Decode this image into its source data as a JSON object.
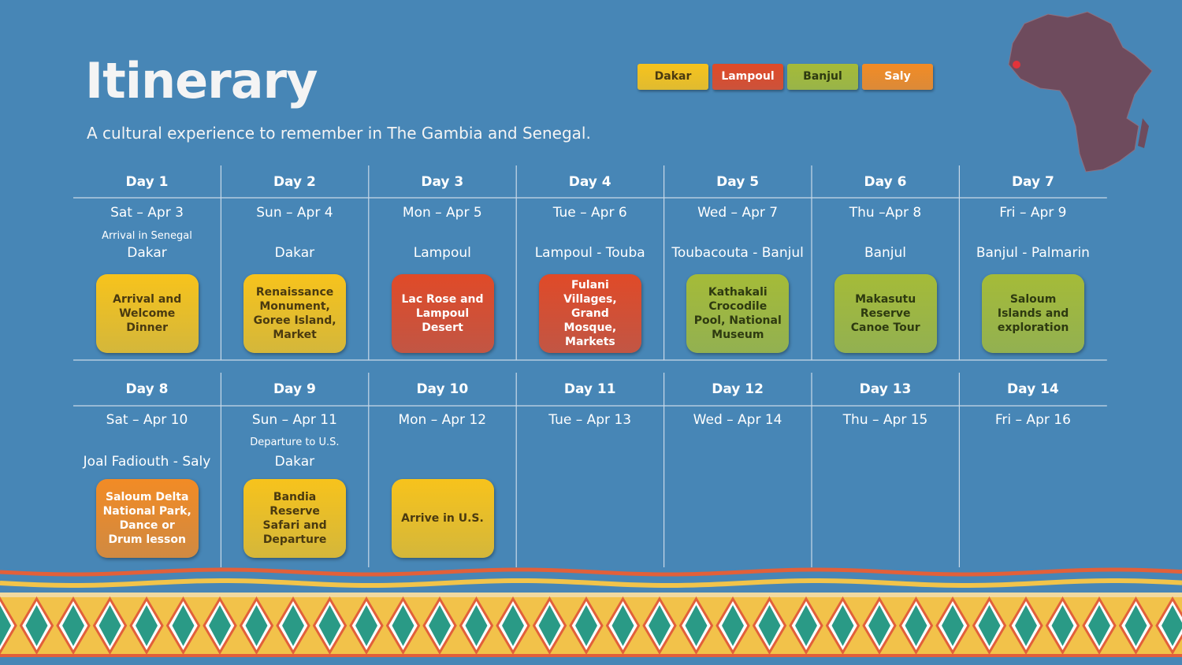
{
  "header": {
    "title": "Itinerary",
    "subtitle": "A cultural experience to remember in The Gambia and Senegal."
  },
  "legend": [
    {
      "label": "Dakar",
      "color": "#f7c31c",
      "text_color": "#4a3a10"
    },
    {
      "label": "Lampoul",
      "color": "#e04a28",
      "text_color": "#ffffff"
    },
    {
      "label": "Banjul",
      "color": "#a5bb38",
      "text_color": "#2e3a10"
    },
    {
      "label": "Saly",
      "color": "#f28b25",
      "text_color": "#ffffff"
    }
  ],
  "weeks": [
    {
      "days": [
        {
          "day": "Day 1",
          "date": "Sat – Apr 3",
          "note": "Arrival in Senegal",
          "location": "Dakar",
          "activity": {
            "text": "Arrival and Welcome Dinner",
            "color": "#f7c31c",
            "text_color": "#4a3a10"
          }
        },
        {
          "day": "Day 2",
          "date": "Sun – Apr 4",
          "location": "Dakar",
          "activity": {
            "text": "Renaissance Monument, Goree Island, Market",
            "color": "#f7c31c",
            "text_color": "#4a3a10"
          }
        },
        {
          "day": "Day 3",
          "date": "Mon – Apr 5",
          "location": "Lampoul",
          "activity": {
            "text": "Lac Rose and Lampoul Desert",
            "color": "#e04a28",
            "text_color": "#ffffff"
          }
        },
        {
          "day": "Day 4",
          "date": "Tue – Apr 6",
          "location": "Lampoul - Touba",
          "activity": {
            "text": "Fulani Villages, Grand Mosque, Markets",
            "color": "#e04a28",
            "text_color": "#ffffff"
          }
        },
        {
          "day": "Day 5",
          "date": "Wed – Apr 7",
          "location": "Toubacouta - Banjul",
          "activity": {
            "text": "Kathakali Crocodile Pool, National Museum",
            "color": "#a5bb38",
            "text_color": "#2e3a10"
          }
        },
        {
          "day": "Day 6",
          "date": "Thu –Apr 8",
          "location": "Banjul",
          "activity": {
            "text": "Makasutu Reserve Canoe Tour",
            "color": "#a5bb38",
            "text_color": "#2e3a10"
          }
        },
        {
          "day": "Day 7",
          "date": "Fri – Apr 9",
          "location": "Banjul - Palmarin",
          "activity": {
            "text": "Saloum Islands and exploration",
            "color": "#a5bb38",
            "text_color": "#2e3a10"
          }
        }
      ]
    },
    {
      "days": [
        {
          "day": "Day 8",
          "date": "Sat – Apr 10",
          "location": "Joal Fadiouth - Saly",
          "activity": {
            "text": "Saloum Delta National Park, Dance or Drum lesson",
            "color": "#f28b25",
            "text_color": "#ffffff"
          }
        },
        {
          "day": "Day 9",
          "date": "Sun – Apr 11",
          "note": "Departure to U.S.",
          "location": "Dakar",
          "activity": {
            "text": "Bandia Reserve Safari and Departure",
            "color": "#f7c31c",
            "text_color": "#4a3a10"
          }
        },
        {
          "day": "Day 10",
          "date": "Mon – Apr 12",
          "activity": {
            "text": "Arrive in U.S.",
            "color": "#f7c31c",
            "text_color": "#4a3a10"
          }
        },
        {
          "day": "Day 11",
          "date": "Tue – Apr 13"
        },
        {
          "day": "Day 12",
          "date": "Wed – Apr 14"
        },
        {
          "day": "Day 13",
          "date": "Thu – Apr 15"
        },
        {
          "day": "Day 14",
          "date": "Fri – Apr 16"
        }
      ]
    }
  ]
}
